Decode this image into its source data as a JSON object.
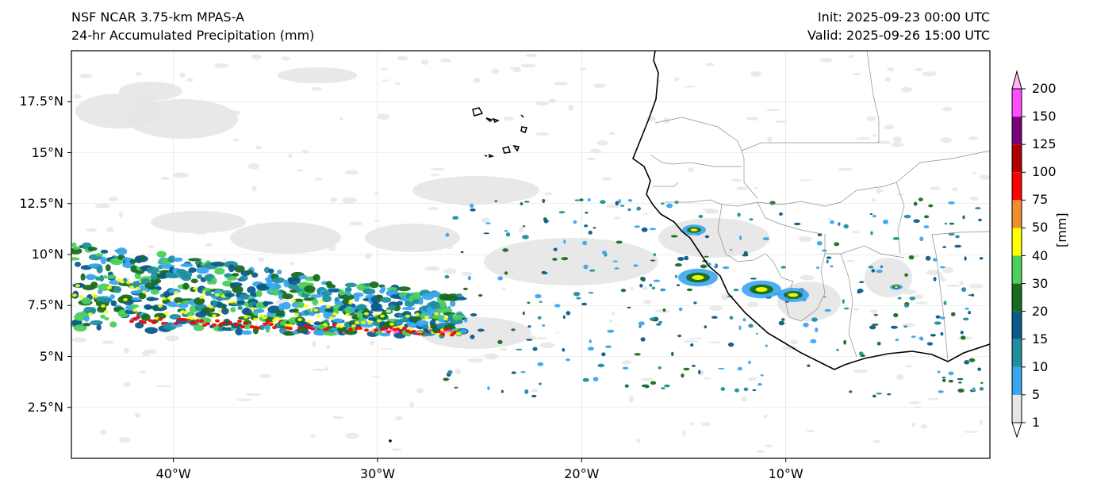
{
  "header": {
    "model": "NSF NCAR 3.75-km MPAS-A",
    "field": "24-hr Accumulated Precipitation (mm)",
    "init": "Init: 2025-09-23 00:00 UTC",
    "valid": "Valid: 2025-09-26 15:00 UTC"
  },
  "axes": {
    "lat_ticks": [
      "17.5°N",
      "15°N",
      "12.5°N",
      "10°N",
      "7.5°N",
      "5°N",
      "2.5°N"
    ],
    "lat_values": [
      17.5,
      15,
      12.5,
      10,
      7.5,
      5,
      2.5
    ],
    "lon_ticks": [
      "40°W",
      "30°W",
      "20°W",
      "10°W"
    ],
    "lon_values": [
      -40,
      -30,
      -20,
      -10
    ],
    "lon_range": [
      -45,
      0
    ],
    "lat_range": [
      0,
      20
    ],
    "grid": true
  },
  "colorbar": {
    "unit": "[mm]",
    "levels": [
      "1",
      "5",
      "10",
      "15",
      "20",
      "30",
      "40",
      "50",
      "75",
      "100",
      "125",
      "150",
      "200"
    ],
    "colors": [
      "#e6e6e6",
      "#3aa6ef",
      "#1f8f9e",
      "#0b5a8c",
      "#196b1f",
      "#4ccf5c",
      "#ffff00",
      "#ef8e2a",
      "#ff0000",
      "#b00000",
      "#7a007a",
      "#ff4dff"
    ],
    "extend": "both"
  },
  "map": {
    "region": "Eastern tropical Atlantic and West Africa",
    "features": [
      "coastline",
      "country borders",
      "Cape Verde islands"
    ],
    "colors": {
      "coast": "#000000",
      "border": "#8c8c8c",
      "grid": "#dddddd"
    }
  }
}
